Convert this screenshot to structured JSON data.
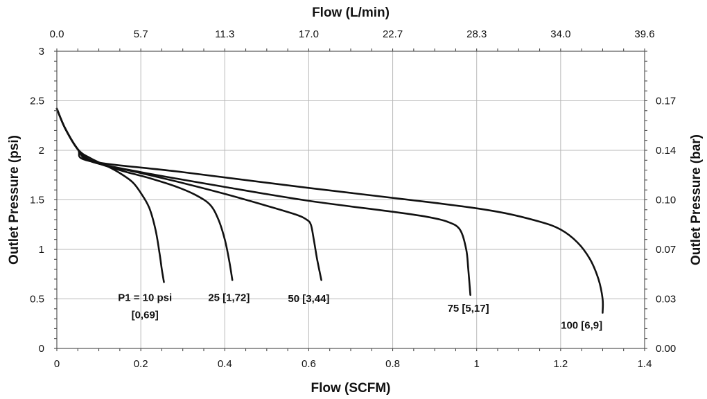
{
  "chart_data": {
    "type": "line",
    "title": "",
    "xlabel": "Flow (SCFM)",
    "ylabel": "Outlet Pressure (psi)",
    "x2label": "Flow (L/min)",
    "y2label": "Outlet Pressure (bar)",
    "xlim": [
      0,
      1.4
    ],
    "ylim": [
      0,
      3
    ],
    "x_ticks": [
      "0",
      "0.2",
      "0.4",
      "0.6",
      "0.8",
      "1",
      "1.2",
      "1.4"
    ],
    "y_ticks": [
      "0",
      "0.5",
      "1",
      "1.5",
      "2",
      "2.5",
      "3"
    ],
    "x2_ticks": [
      "0.0",
      "5.7",
      "11.3",
      "17.0",
      "22.7",
      "28.3",
      "34.0",
      "39.6"
    ],
    "y2_ticks": [
      "0.00",
      "0.03",
      "0.07",
      "0.10",
      "0.14",
      "0.17"
    ],
    "y2_tick_values_psi": [
      0,
      0.5,
      1,
      1.5,
      2,
      2.5
    ],
    "grid": true,
    "series": [
      {
        "label_lines": [
          "P1 = 10 psi",
          "[0,69]"
        ],
        "label_at": [
          0.21,
          0.48
        ],
        "points": [
          [
            0,
            2.42
          ],
          [
            0.02,
            2.22
          ],
          [
            0.05,
            2.01
          ],
          [
            0.08,
            1.92
          ],
          [
            0.12,
            1.84
          ],
          [
            0.15,
            1.77
          ],
          [
            0.18,
            1.68
          ],
          [
            0.2,
            1.57
          ],
          [
            0.22,
            1.42
          ],
          [
            0.235,
            1.2
          ],
          [
            0.245,
            0.95
          ],
          [
            0.25,
            0.8
          ],
          [
            0.255,
            0.67
          ]
        ]
      },
      {
        "label_lines": [
          "25 [1,72]"
        ],
        "label_at": [
          0.41,
          0.48
        ],
        "points": [
          [
            0,
            2.42
          ],
          [
            0.02,
            2.22
          ],
          [
            0.05,
            2.01
          ],
          [
            0.08,
            1.9
          ],
          [
            0.15,
            1.8
          ],
          [
            0.22,
            1.72
          ],
          [
            0.28,
            1.64
          ],
          [
            0.33,
            1.55
          ],
          [
            0.365,
            1.45
          ],
          [
            0.385,
            1.3
          ],
          [
            0.4,
            1.1
          ],
          [
            0.41,
            0.9
          ],
          [
            0.418,
            0.69
          ]
        ]
      },
      {
        "label_lines": [
          "50 [3,44]"
        ],
        "label_at": [
          0.6,
          0.47
        ],
        "points": [
          [
            0,
            2.42
          ],
          [
            0.02,
            2.22
          ],
          [
            0.05,
            2.01
          ],
          [
            0.08,
            1.89
          ],
          [
            0.2,
            1.77
          ],
          [
            0.3,
            1.67
          ],
          [
            0.4,
            1.56
          ],
          [
            0.5,
            1.44
          ],
          [
            0.57,
            1.35
          ],
          [
            0.595,
            1.3
          ],
          [
            0.605,
            1.25
          ],
          [
            0.612,
            1.1
          ],
          [
            0.62,
            0.9
          ],
          [
            0.63,
            0.69
          ]
        ]
      },
      {
        "label_lines": [
          "75 [5,17]"
        ],
        "label_at": [
          0.98,
          0.37
        ],
        "points": [
          [
            0,
            2.42
          ],
          [
            0.02,
            2.22
          ],
          [
            0.05,
            2.01
          ],
          [
            0.08,
            1.89
          ],
          [
            0.2,
            1.78
          ],
          [
            0.4,
            1.63
          ],
          [
            0.6,
            1.49
          ],
          [
            0.8,
            1.38
          ],
          [
            0.88,
            1.33
          ],
          [
            0.93,
            1.28
          ],
          [
            0.96,
            1.2
          ],
          [
            0.975,
            1.0
          ],
          [
            0.98,
            0.8
          ],
          [
            0.985,
            0.54
          ]
        ]
      },
      {
        "label_lines": [
          "100 [6,9]"
        ],
        "label_at": [
          1.25,
          0.2
        ],
        "points": [
          [
            0,
            2.42
          ],
          [
            0.02,
            2.22
          ],
          [
            0.05,
            2.01
          ],
          [
            0.08,
            1.89
          ],
          [
            0.3,
            1.78
          ],
          [
            0.6,
            1.62
          ],
          [
            0.9,
            1.47
          ],
          [
            1.05,
            1.38
          ],
          [
            1.15,
            1.28
          ],
          [
            1.2,
            1.2
          ],
          [
            1.24,
            1.07
          ],
          [
            1.27,
            0.9
          ],
          [
            1.29,
            0.7
          ],
          [
            1.3,
            0.5
          ],
          [
            1.3,
            0.36
          ]
        ]
      }
    ]
  }
}
